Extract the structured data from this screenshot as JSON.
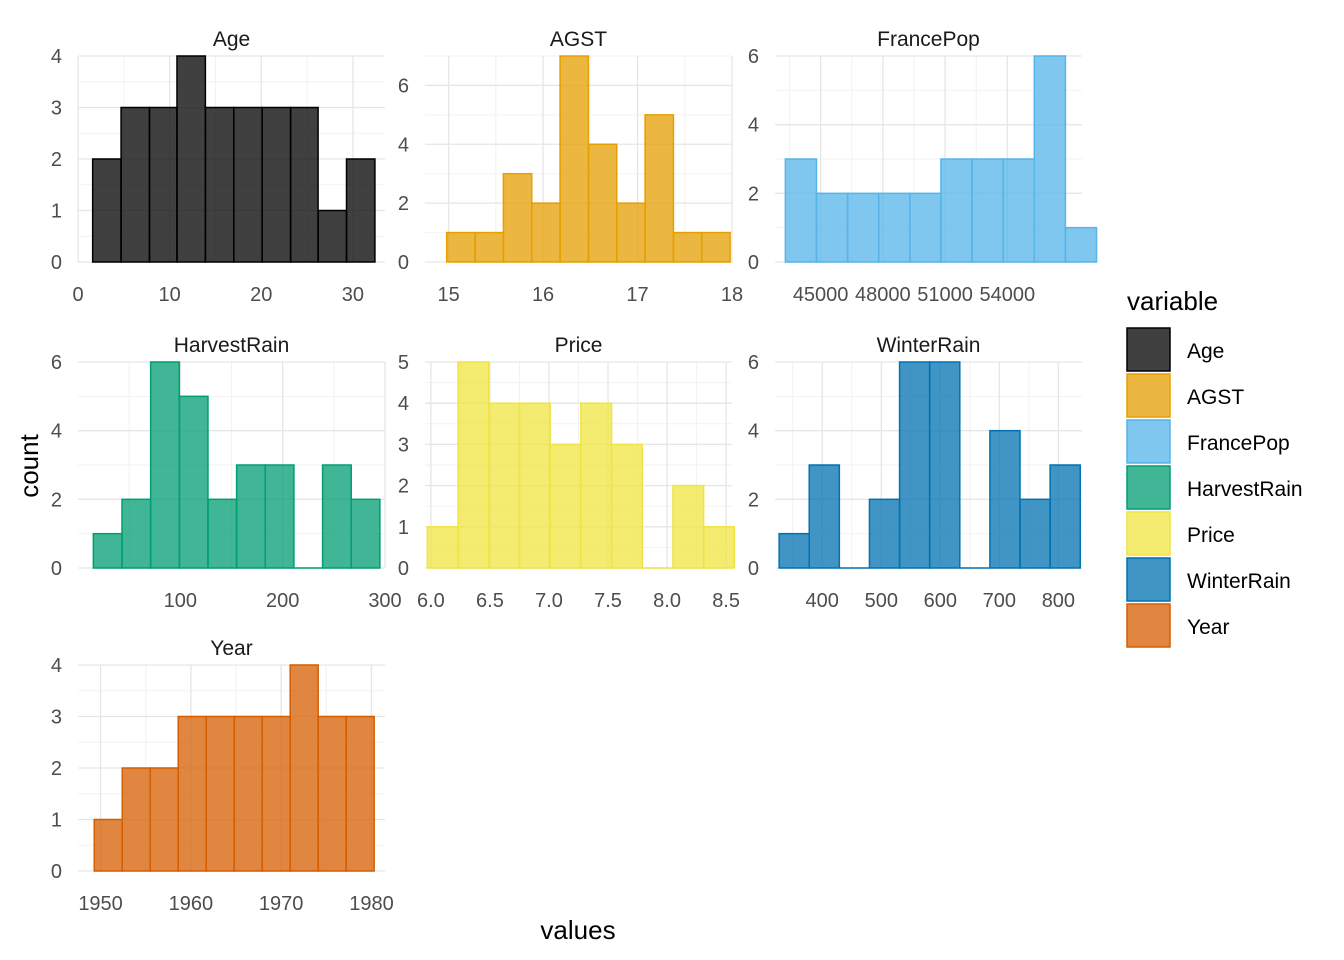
{
  "chart_data": {
    "type": "bar",
    "subtype": "faceted-histogram",
    "xlabel": "values",
    "ylabel": "count",
    "legend": {
      "title": "variable",
      "position": "right"
    },
    "grid": true,
    "facets": [
      {
        "name": "Age",
        "color": "#000000",
        "xlim": [
          0,
          33.5
        ],
        "ylim": [
          0,
          4
        ],
        "xticks": [
          0,
          10,
          20,
          30
        ],
        "xtick_labels": [
          "0",
          "10",
          "20",
          "30"
        ],
        "yticks": [
          0,
          1,
          2,
          3,
          4
        ],
        "bins": [
          {
            "x0": 1.6,
            "x1": 4.7,
            "count": 2
          },
          {
            "x0": 4.7,
            "x1": 7.8,
            "count": 3
          },
          {
            "x0": 7.8,
            "x1": 10.8,
            "count": 3
          },
          {
            "x0": 10.8,
            "x1": 13.9,
            "count": 4
          },
          {
            "x0": 13.9,
            "x1": 17.0,
            "count": 3
          },
          {
            "x0": 17.0,
            "x1": 20.1,
            "count": 3
          },
          {
            "x0": 20.1,
            "x1": 23.2,
            "count": 3
          },
          {
            "x0": 23.2,
            "x1": 26.2,
            "count": 3
          },
          {
            "x0": 26.2,
            "x1": 29.3,
            "count": 1
          },
          {
            "x0": 29.3,
            "x1": 32.4,
            "count": 2
          }
        ]
      },
      {
        "name": "AGST",
        "color": "#E69F00",
        "xlim": [
          14.75,
          18.0
        ],
        "ylim": [
          0,
          7
        ],
        "xticks": [
          15,
          16,
          17,
          18
        ],
        "xtick_labels": [
          "15",
          "16",
          "17",
          "18"
        ],
        "yticks": [
          0,
          2,
          4,
          6
        ],
        "bins": [
          {
            "x0": 14.98,
            "x1": 15.28,
            "count": 1
          },
          {
            "x0": 15.28,
            "x1": 15.58,
            "count": 1
          },
          {
            "x0": 15.58,
            "x1": 15.88,
            "count": 3
          },
          {
            "x0": 15.88,
            "x1": 16.18,
            "count": 2
          },
          {
            "x0": 16.18,
            "x1": 16.48,
            "count": 7
          },
          {
            "x0": 16.48,
            "x1": 16.78,
            "count": 4
          },
          {
            "x0": 16.78,
            "x1": 17.08,
            "count": 2
          },
          {
            "x0": 17.08,
            "x1": 17.38,
            "count": 5
          },
          {
            "x0": 17.38,
            "x1": 17.68,
            "count": 1
          },
          {
            "x0": 17.68,
            "x1": 17.98,
            "count": 1
          }
        ]
      },
      {
        "name": "FrancePop",
        "color": "#56B4E9",
        "xlim": [
          42800,
          57600
        ],
        "ylim": [
          0,
          6
        ],
        "xticks": [
          45000,
          48000,
          51000,
          54000
        ],
        "xtick_labels": [
          "45000",
          "48000",
          "51000",
          "54000"
        ],
        "yticks": [
          0,
          2,
          4,
          6
        ],
        "bins": [
          {
            "x0": 43300,
            "x1": 44800,
            "count": 3
          },
          {
            "x0": 44800,
            "x1": 46300,
            "count": 2
          },
          {
            "x0": 46300,
            "x1": 47800,
            "count": 2
          },
          {
            "x0": 47800,
            "x1": 49300,
            "count": 2
          },
          {
            "x0": 49300,
            "x1": 50800,
            "count": 2
          },
          {
            "x0": 50800,
            "x1": 52300,
            "count": 3
          },
          {
            "x0": 52300,
            "x1": 53800,
            "count": 3
          },
          {
            "x0": 53800,
            "x1": 55300,
            "count": 3
          },
          {
            "x0": 55300,
            "x1": 56800,
            "count": 6
          },
          {
            "x0": 56800,
            "x1": 58300,
            "count": 1
          }
        ]
      },
      {
        "name": "HarvestRain",
        "color": "#009E73",
        "xlim": [
          0,
          300
        ],
        "ylim": [
          0,
          6
        ],
        "xticks": [
          100,
          200,
          300
        ],
        "xtick_labels": [
          "100",
          "200",
          "300"
        ],
        "yticks": [
          0,
          2,
          4,
          6
        ],
        "bins": [
          {
            "x0": 15,
            "x1": 43,
            "count": 1
          },
          {
            "x0": 43,
            "x1": 71,
            "count": 2
          },
          {
            "x0": 71,
            "x1": 99,
            "count": 6
          },
          {
            "x0": 99,
            "x1": 127,
            "count": 5
          },
          {
            "x0": 127,
            "x1": 155,
            "count": 2
          },
          {
            "x0": 155,
            "x1": 183,
            "count": 3
          },
          {
            "x0": 183,
            "x1": 211,
            "count": 3
          },
          {
            "x0": 211,
            "x1": 239,
            "count": 0
          },
          {
            "x0": 239,
            "x1": 267,
            "count": 3
          },
          {
            "x0": 267,
            "x1": 295,
            "count": 2
          }
        ]
      },
      {
        "name": "Price",
        "color": "#F0E442",
        "xlim": [
          5.95,
          8.55
        ],
        "ylim": [
          0,
          5
        ],
        "xticks": [
          6.0,
          6.5,
          7.0,
          7.5,
          8.0,
          8.5
        ],
        "xtick_labels": [
          "6.0",
          "6.5",
          "7.0",
          "7.5",
          "8.0",
          "8.5"
        ],
        "yticks": [
          0,
          1,
          2,
          3,
          4,
          5
        ],
        "bins": [
          {
            "x0": 5.97,
            "x1": 6.23,
            "count": 1
          },
          {
            "x0": 6.23,
            "x1": 6.49,
            "count": 5
          },
          {
            "x0": 6.49,
            "x1": 6.75,
            "count": 4
          },
          {
            "x0": 6.75,
            "x1": 7.01,
            "count": 4
          },
          {
            "x0": 7.01,
            "x1": 7.27,
            "count": 3
          },
          {
            "x0": 7.27,
            "x1": 7.53,
            "count": 4
          },
          {
            "x0": 7.53,
            "x1": 7.79,
            "count": 3
          },
          {
            "x0": 7.79,
            "x1": 8.05,
            "count": 0
          },
          {
            "x0": 8.05,
            "x1": 8.31,
            "count": 2
          },
          {
            "x0": 8.31,
            "x1": 8.57,
            "count": 1
          }
        ]
      },
      {
        "name": "WinterRain",
        "color": "#0072B2",
        "xlim": [
          320,
          840
        ],
        "ylim": [
          0,
          6
        ],
        "xticks": [
          400,
          500,
          600,
          700,
          800
        ],
        "xtick_labels": [
          "400",
          "500",
          "600",
          "700",
          "800"
        ],
        "yticks": [
          0,
          2,
          4,
          6
        ],
        "bins": [
          {
            "x0": 327,
            "x1": 378,
            "count": 1
          },
          {
            "x0": 378,
            "x1": 429,
            "count": 3
          },
          {
            "x0": 429,
            "x1": 480,
            "count": 0
          },
          {
            "x0": 480,
            "x1": 531,
            "count": 2
          },
          {
            "x0": 531,
            "x1": 582,
            "count": 6
          },
          {
            "x0": 582,
            "x1": 633,
            "count": 6
          },
          {
            "x0": 633,
            "x1": 684,
            "count": 0
          },
          {
            "x0": 684,
            "x1": 735,
            "count": 4
          },
          {
            "x0": 735,
            "x1": 786,
            "count": 2
          },
          {
            "x0": 786,
            "x1": 837,
            "count": 3
          }
        ]
      },
      {
        "name": "Year",
        "color": "#D55E00",
        "xlim": [
          1947.5,
          1981.5
        ],
        "ylim": [
          0,
          4
        ],
        "xticks": [
          1950,
          1960,
          1970,
          1980
        ],
        "xtick_labels": [
          "1950",
          "1960",
          "1970",
          "1980"
        ],
        "yticks": [
          0,
          1,
          2,
          3,
          4
        ],
        "bins": [
          {
            "x0": 1949.3,
            "x1": 1952.4,
            "count": 1
          },
          {
            "x0": 1952.4,
            "x1": 1955.5,
            "count": 2
          },
          {
            "x0": 1955.5,
            "x1": 1958.6,
            "count": 2
          },
          {
            "x0": 1958.6,
            "x1": 1961.7,
            "count": 3
          },
          {
            "x0": 1961.7,
            "x1": 1964.8,
            "count": 3
          },
          {
            "x0": 1964.8,
            "x1": 1967.9,
            "count": 3
          },
          {
            "x0": 1967.9,
            "x1": 1971.0,
            "count": 3
          },
          {
            "x0": 1971.0,
            "x1": 1974.1,
            "count": 4
          },
          {
            "x0": 1974.1,
            "x1": 1977.2,
            "count": 3
          },
          {
            "x0": 1977.2,
            "x1": 1980.3,
            "count": 3
          }
        ]
      }
    ]
  }
}
